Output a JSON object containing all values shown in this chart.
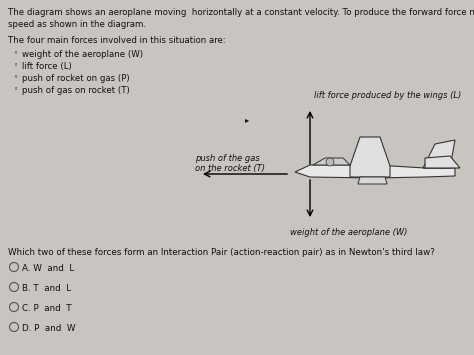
{
  "bg_color": "#c8c4c0",
  "title_line1": "The diagram shows an aeroplane moving  horizontally at a constant velocity. To produce the forward force nec",
  "title_line2": "speed as shown in the diagram.",
  "four_forces_header": "The four main forces involved in this situation are:",
  "bullet_items": [
    "weight of the aeroplane (W)",
    "lift force (L)",
    "push of rocket on gas (P)",
    "push of gas on rocket (T)"
  ],
  "label_lift": "lift force produced by the wings (L)",
  "label_push": "push of the gas\non the rocket (T)",
  "label_weight": "weight of the aeroplane (W)",
  "question": "Which two of these forces form an Interaction Pair (action-reaction pair) as in Newton's third law?",
  "options": [
    "A. W  and  L",
    "B. T  and  L",
    "C. P  and  T",
    "D. P  and  W"
  ],
  "text_color": "#111111"
}
